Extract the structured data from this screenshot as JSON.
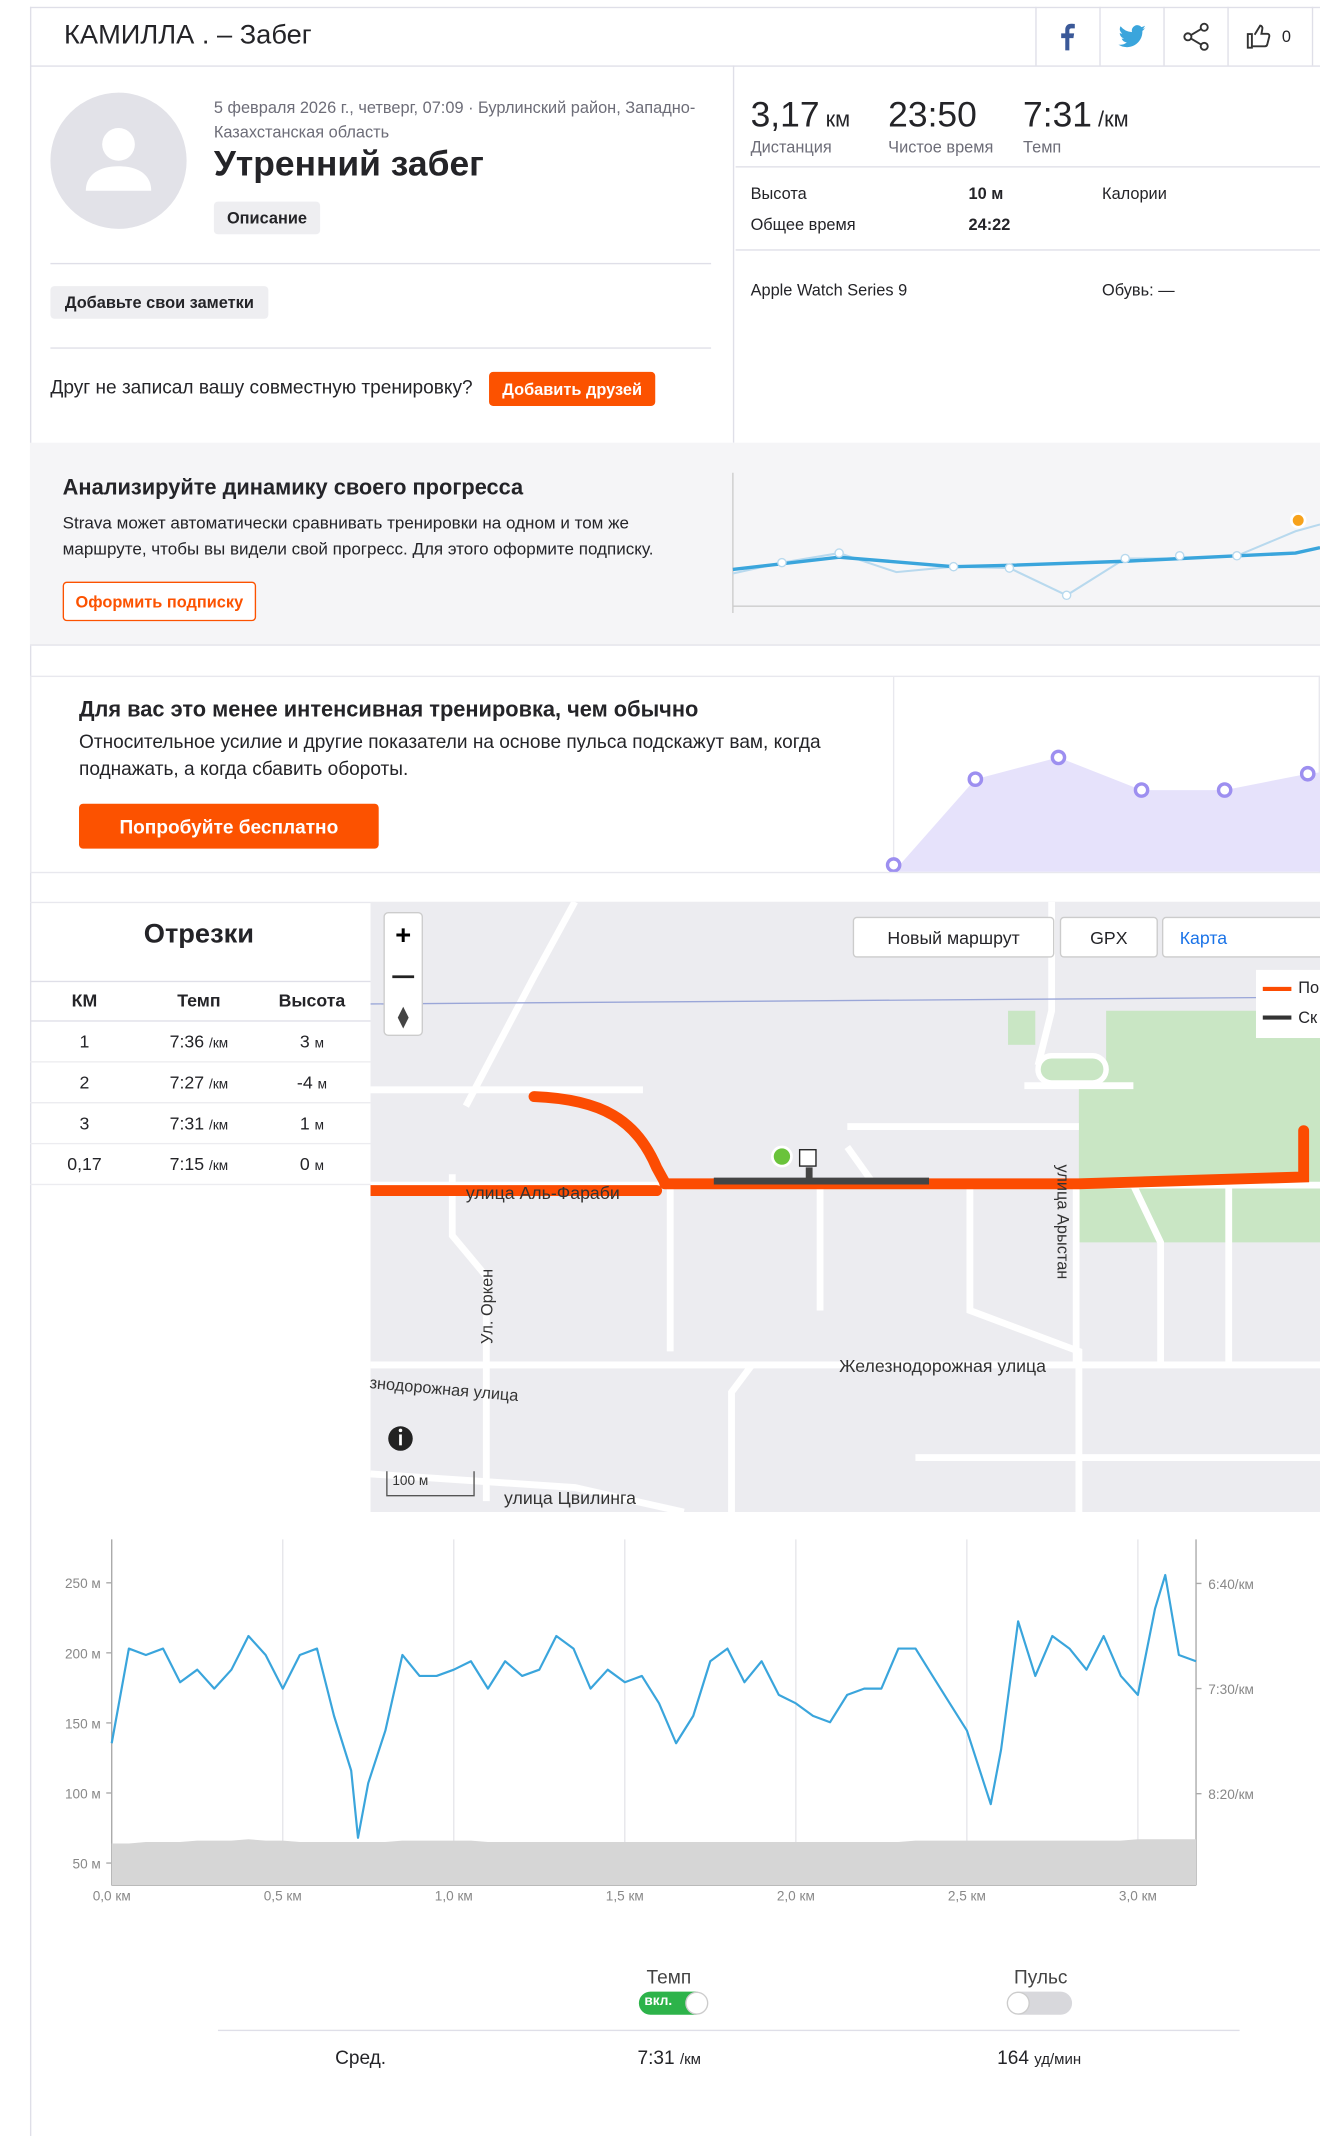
{
  "header": {
    "athlete": "КАМИЛЛА . – Забег",
    "kudos": "0"
  },
  "activity": {
    "meta": "5 февраля 2026 г., четверг, 07:09 · Бурлинский район, Западно-Казахстанская область",
    "title": "Утренний забег",
    "description_button": "Описание",
    "notes_button": "Добавьте свои заметки",
    "friend_text": "Друг не записал вашу совместную тренировку?",
    "friend_button": "Добавить друзей"
  },
  "stats": {
    "primary": [
      {
        "value": "3,17",
        "unit": "км",
        "label": "Дистанция"
      },
      {
        "value": "23:50",
        "label": "Чистое время"
      },
      {
        "value": "7:31",
        "unit": "/км",
        "label": "Темп"
      }
    ],
    "elevation_label": "Высота",
    "elevation_value": "10 м",
    "calories_label": "Калории",
    "elapsed_label": "Общее время",
    "elapsed_value": "24:22",
    "device": "Apple Watch Series 9",
    "shoes": "Обувь: —"
  },
  "promo_progress": {
    "title": "Анализируйте динамику своего прогресса",
    "text": "Strava может автоматически сравнивать тренировки на одном и том же маршруте, чтобы вы видели свой прогресс. Для этого оформите подписку.",
    "button": "Оформить подписку"
  },
  "promo_effort": {
    "title": "Для вас это менее интенсивная тренировка, чем обычно",
    "text": "Относительное усилие и другие показатели на основе пульса подскажут вам, когда поднажать, а когда сбавить обороты.",
    "button": "Попробуйте бесплатно"
  },
  "splits": {
    "title": "Отрезки",
    "columns": [
      "КМ",
      "Темп",
      "Высота"
    ],
    "pace_unit": "/км",
    "elev_unit": "м",
    "rows": [
      {
        "km": "1",
        "pace": "7:36",
        "elev": "3"
      },
      {
        "km": "2",
        "pace": "7:27",
        "elev": "-4"
      },
      {
        "km": "3",
        "pace": "7:31",
        "elev": "1"
      },
      {
        "km": "0,17",
        "pace": "7:15",
        "elev": "0"
      }
    ]
  },
  "map": {
    "new_route": "Новый маршрут",
    "gpx": "GPX",
    "layer": "Карта",
    "legend": [
      "По",
      "Ск"
    ],
    "streets": [
      "улица Аль-Фараби",
      "улица Арыстан",
      "Ул. Оркен",
      "Железнодорожная улица",
      "знодорожная улица",
      "улица Цвилинга"
    ],
    "scale": "100 м"
  },
  "chart_data": {
    "type": "line",
    "x": [
      0,
      0.05,
      0.1,
      0.15,
      0.2,
      0.25,
      0.3,
      0.35,
      0.4,
      0.45,
      0.5,
      0.55,
      0.6,
      0.65,
      0.7,
      0.72,
      0.75,
      0.8,
      0.85,
      0.9,
      0.95,
      1.0,
      1.05,
      1.1,
      1.15,
      1.2,
      1.25,
      1.3,
      1.35,
      1.4,
      1.45,
      1.5,
      1.55,
      1.6,
      1.65,
      1.7,
      1.75,
      1.8,
      1.85,
      1.9,
      1.95,
      2.0,
      2.05,
      2.1,
      2.15,
      2.2,
      2.25,
      2.3,
      2.35,
      2.4,
      2.45,
      2.5,
      2.55,
      2.57,
      2.6,
      2.65,
      2.7,
      2.75,
      2.8,
      2.85,
      2.9,
      2.95,
      3.0,
      3.05,
      3.08,
      3.12,
      3.17
    ],
    "series": [
      {
        "color": "#3aa5dc",
        "axis": "y2",
        "values": [
          476,
          431,
          434,
          431,
          447,
          441,
          450,
          441,
          425,
          434,
          450,
          434,
          431,
          463,
          489,
          521,
          495,
          470,
          434,
          444,
          444,
          441,
          437,
          450,
          437,
          444,
          441,
          425,
          431,
          450,
          441,
          447,
          444,
          457,
          476,
          463,
          437,
          431,
          447,
          437,
          453,
          457,
          463,
          466,
          453,
          450,
          450,
          431,
          431,
          444,
          457,
          470,
          495,
          505,
          479,
          418,
          444,
          425,
          431,
          441,
          425,
          444,
          453,
          412,
          396,
          434,
          437
        ]
      },
      {
        "color": "#d6d6d6",
        "area": true,
        "values": [
          64,
          64,
          65,
          65,
          65,
          66,
          66,
          66,
          67,
          66,
          66,
          65,
          65,
          65,
          65,
          65,
          65,
          65,
          66,
          66,
          66,
          66,
          66,
          65,
          65,
          65,
          65,
          65,
          65,
          65,
          65,
          65,
          65,
          65,
          65,
          65,
          65,
          65,
          65,
          65,
          65,
          65,
          65,
          65,
          65,
          65,
          65,
          65,
          66,
          66,
          66,
          66,
          66,
          66,
          66,
          66,
          66,
          66,
          66,
          66,
          66,
          66,
          67,
          67,
          67,
          67,
          67
        ]
      }
    ],
    "xlim": [
      0,
      3.17
    ],
    "xticks": [
      {
        "value": 0,
        "label": "0,0 км"
      },
      {
        "value": 0.5,
        "label": "0,5 км"
      },
      {
        "value": 1,
        "label": "1,0 км"
      },
      {
        "value": 1.5,
        "label": "1,5 км"
      },
      {
        "value": 2,
        "label": "2,0 км"
      },
      {
        "value": 2.5,
        "label": "2,5 км"
      },
      {
        "value": 3,
        "label": "3,0 км"
      }
    ],
    "ylim": [
      38,
      281
    ],
    "yticks": [
      {
        "value": 50,
        "label": "50 м"
      },
      {
        "value": 100,
        "label": "100 м"
      },
      {
        "value": 150,
        "label": "150 м"
      },
      {
        "value": 200,
        "label": "200 м"
      },
      {
        "value": 250,
        "label": "250 м"
      }
    ],
    "y2lim": [
      541,
      379
    ],
    "y2ticks": [
      {
        "value": 400,
        "label": "6:40/км"
      },
      {
        "value": 450,
        "label": "7:30/км"
      },
      {
        "value": 500,
        "label": "8:20/км"
      }
    ],
    "grid": true
  },
  "chart_controls": {
    "pace_label": "Темп",
    "pace_toggle": "вкл.",
    "hr_label": "Пульс",
    "avg_label": "Сред.",
    "avg_pace": "7:31",
    "pace_unit": "/км",
    "avg_hr": "164",
    "hr_unit": "уд/мин"
  }
}
